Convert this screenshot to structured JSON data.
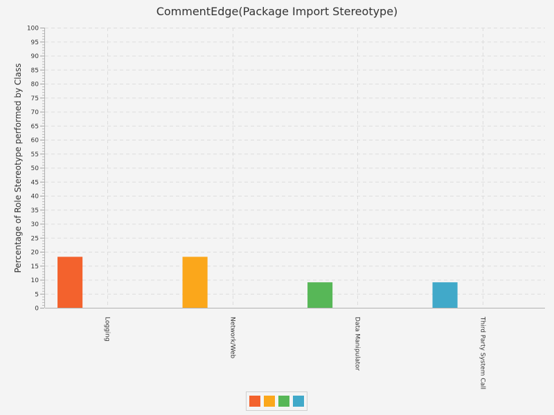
{
  "chart_data": {
    "type": "bar",
    "title": "CommentEdge(Package Import Stereotype)",
    "xlabel": "",
    "ylabel": "Percentage of Role Stereotype performed by Class",
    "ylim": [
      0,
      100
    ],
    "yticks": [
      0,
      5,
      10,
      15,
      20,
      25,
      30,
      35,
      40,
      45,
      50,
      55,
      60,
      65,
      70,
      75,
      80,
      85,
      90,
      95,
      100
    ],
    "categories": [
      "Logging",
      "Network/Web",
      "Data Manipulator",
      "Third Party System Call"
    ],
    "values": [
      18.2,
      18.2,
      9.1,
      9.1
    ],
    "colors": [
      "#f3622d",
      "#fba71b",
      "#57b757",
      "#41a9c9"
    ],
    "grid": true,
    "legend_position": "bottom"
  }
}
